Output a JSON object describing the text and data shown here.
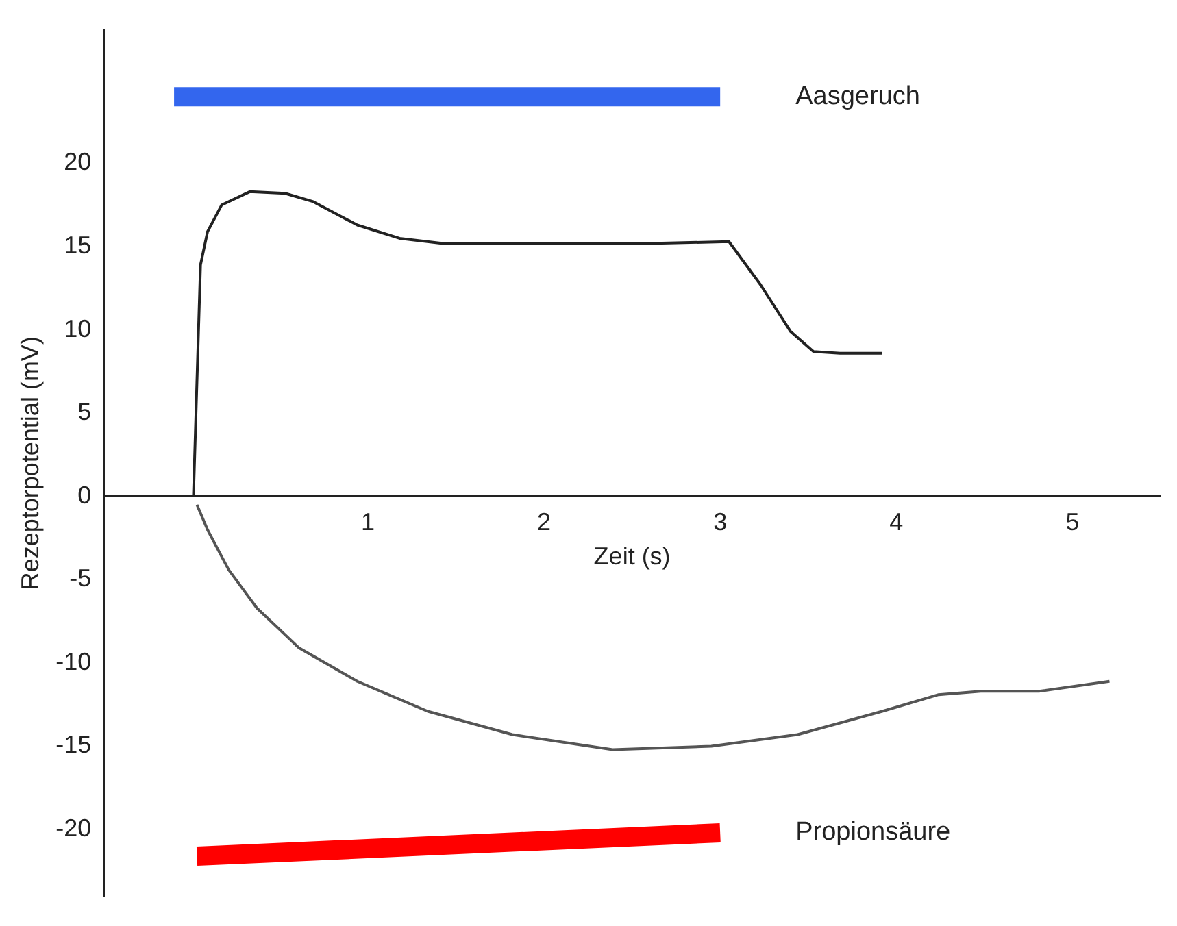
{
  "chart_data": {
    "type": "line",
    "xlabel": "Zeit (s)",
    "ylabel": "Rezeptorpotential (mV)",
    "xlim": [
      -0.5,
      5.5
    ],
    "ylim": [
      -24,
      28
    ],
    "xticks": [
      1,
      2,
      3,
      4,
      5
    ],
    "yticks": [
      -20,
      -15,
      -10,
      -5,
      0,
      5,
      10,
      15,
      20
    ],
    "grid": false,
    "legend": false,
    "marker": "none",
    "line_style": "solid",
    "series": [
      {
        "name": "Aasgeruch",
        "color": "#3366ee",
        "x": [
          -0.1,
          3.0
        ],
        "values": [
          24,
          24
        ]
      },
      {
        "name": "Propionsäure",
        "color": "#ff0000",
        "x": [
          0.03,
          3.0
        ],
        "values": [
          -21.6,
          -20.2
        ]
      },
      {
        "color": "#222222",
        "x": [
          0.01,
          0.05,
          0.09,
          0.17,
          0.33,
          0.53,
          0.69,
          0.94,
          1.18,
          1.42,
          1.82,
          2.63,
          3.05,
          3.23,
          3.4,
          3.53,
          3.68,
          3.92
        ],
        "values": [
          0,
          13.9,
          15.9,
          17.5,
          18.3,
          18.2,
          17.7,
          16.3,
          15.5,
          15.2,
          15.2,
          15.2,
          15.3,
          12.7,
          9.9,
          8.7,
          8.6,
          8.6
        ]
      },
      {
        "color": "#555555",
        "x": [
          0.03,
          0.09,
          0.21,
          0.37,
          0.61,
          0.94,
          1.34,
          1.82,
          2.39,
          2.95,
          3.44,
          3.92,
          4.24,
          4.48,
          4.81,
          5.21
        ],
        "values": [
          -0.5,
          -2,
          -4.4,
          -6.7,
          -9.1,
          -11.1,
          -12.9,
          -14.3,
          -15.2,
          -15,
          -14.3,
          -12.9,
          -11.9,
          -11.7,
          -11.7,
          -11.1
        ]
      }
    ]
  }
}
